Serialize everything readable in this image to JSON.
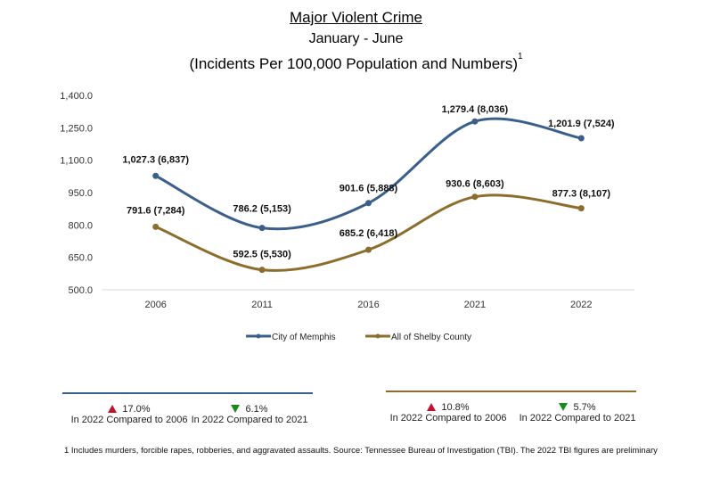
{
  "chart_data": {
    "type": "line",
    "title": "Major Violent Crime",
    "subtitle": "January - June",
    "subtitle2": "(Incidents Per 100,000 Population and Numbers)",
    "subtitle2_footnote_mark": "1",
    "categories": [
      "2006",
      "2011",
      "2016",
      "2021",
      "2022"
    ],
    "ylim": [
      500,
      1400
    ],
    "yticks": [
      500,
      650,
      800,
      950,
      1100,
      1250,
      1400
    ],
    "ytick_labels": [
      "500.0",
      "650.0",
      "800.0",
      "950.0",
      "1,100.0",
      "1,250.0",
      "1,400.0"
    ],
    "xlabel": "",
    "ylabel": "",
    "grid": false,
    "legend_position": "bottom",
    "smooth": true,
    "series": [
      {
        "name": "City of Memphis",
        "color": "#3b5f8a",
        "values": [
          1027.3,
          786.2,
          901.6,
          1279.4,
          1201.9
        ],
        "labels": [
          "1,027.3 (6,837)",
          "786.2 (5,153)",
          "901.6 (5,888)",
          "1,279.4  (8,036)",
          "1,201.9 (7,524)"
        ]
      },
      {
        "name": "All of Shelby County",
        "color": "#8c6d2c",
        "values": [
          791.6,
          592.5,
          685.2,
          930.6,
          877.3
        ],
        "labels": [
          "791.6 (7,284)",
          "592.5 (5,530)",
          "685.2 (6,418)",
          "930.6  (8,603)",
          "877.3  (8,107)"
        ]
      }
    ]
  },
  "comparisons": {
    "memphis": {
      "color": "#3b5f8a",
      "items": [
        {
          "direction": "up",
          "percent": "17.0%",
          "caption": "In 2022 Compared to 2006"
        },
        {
          "direction": "down",
          "percent": "6.1%",
          "caption": "In 2022 Compared to 2021"
        }
      ]
    },
    "shelby": {
      "color": "#8c6d2c",
      "items": [
        {
          "direction": "up",
          "percent": "10.8%",
          "caption": "In 2022 Compared to 2006"
        },
        {
          "direction": "down",
          "percent": "5.7%",
          "caption": "In 2022 Compared to 2021"
        }
      ]
    }
  },
  "footnote": "1  Includes murders, forcible rapes, robberies, and aggravated assaults. Source:  Tennessee Bureau of Investigation (TBI). The 2022 TBI figures are preliminary"
}
